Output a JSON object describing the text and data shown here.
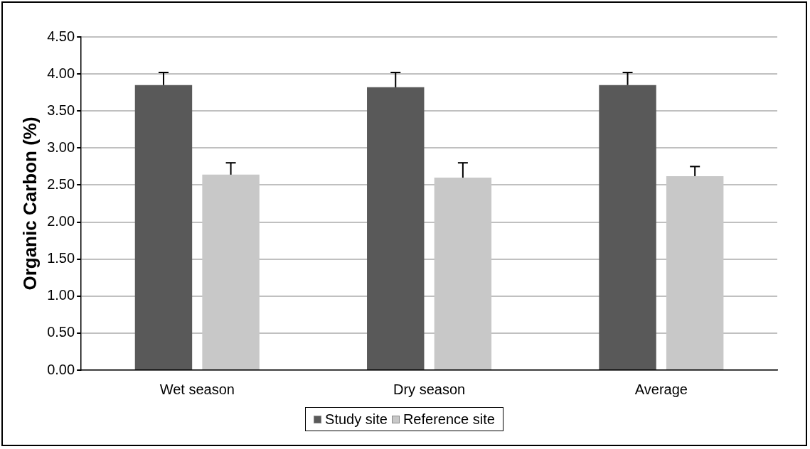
{
  "chart_data": {
    "type": "bar",
    "ylabel": "Organic Carbon (%)",
    "categories": [
      "Wet season",
      "Dry season",
      "Average"
    ],
    "series": [
      {
        "name": "Study site",
        "color": "#595959",
        "values": [
          3.85,
          3.82,
          3.85
        ],
        "errors": [
          [
            3.85,
            4.02
          ],
          [
            3.82,
            4.02
          ],
          [
            3.85,
            4.02
          ]
        ]
      },
      {
        "name": "Reference site",
        "color": "#c8c8c8",
        "values": [
          2.64,
          2.6,
          2.62
        ],
        "errors": [
          [
            2.64,
            2.8
          ],
          [
            2.6,
            2.8
          ],
          [
            2.62,
            2.75
          ]
        ]
      }
    ],
    "ylim": [
      0,
      4.5
    ],
    "yticks": [
      {
        "value": 0,
        "label": "0.00"
      },
      {
        "value": 0.5,
        "label": "0.50"
      },
      {
        "value": 1,
        "label": "1.00"
      },
      {
        "value": 1.5,
        "label": "1.50"
      },
      {
        "value": 2,
        "label": "2.00"
      },
      {
        "value": 2.5,
        "label": "2.50"
      },
      {
        "value": 3,
        "label": "3.00"
      },
      {
        "value": 3.5,
        "label": "3.50"
      },
      {
        "value": 4,
        "label": "4.00"
      },
      {
        "value": 4.5,
        "label": "4.50"
      }
    ],
    "grid": "y",
    "legend": "bottom"
  }
}
